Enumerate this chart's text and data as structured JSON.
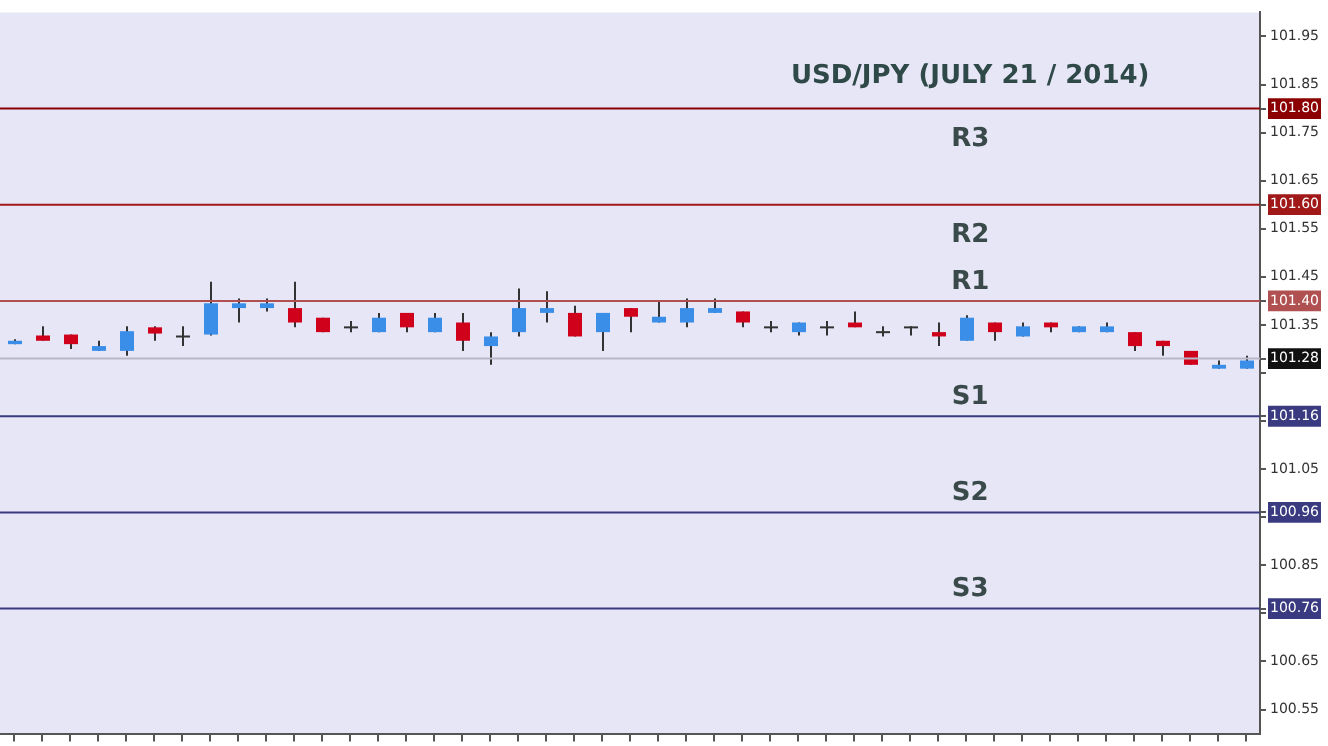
{
  "chart_data": {
    "type": "candlestick",
    "title": "USD/JPY (JULY 21 / 2014)",
    "categories": [
      null,
      null,
      null,
      null,
      null,
      null,
      null,
      null,
      null,
      null,
      null,
      null,
      null,
      null,
      null,
      null,
      null,
      null,
      null,
      null,
      null,
      null,
      null,
      null,
      null,
      null,
      null,
      null,
      null,
      null,
      null,
      null,
      null,
      null,
      null,
      null,
      null,
      null,
      null,
      null,
      null,
      null,
      null,
      null,
      null
    ],
    "ohlc": [
      [
        101.31,
        101.32,
        101.31,
        101.317
      ],
      [
        101.328,
        101.347,
        101.317,
        101.317
      ],
      [
        101.33,
        101.33,
        101.3,
        101.31
      ],
      [
        101.296,
        101.317,
        101.296,
        101.306
      ],
      [
        101.296,
        101.347,
        101.286,
        101.337
      ],
      [
        101.345,
        101.347,
        101.317,
        101.332
      ],
      [
        101.328,
        101.347,
        101.306,
        101.328
      ],
      [
        101.33,
        101.44,
        101.328,
        101.395
      ],
      [
        101.385,
        101.405,
        101.355,
        101.395
      ],
      [
        101.385,
        101.405,
        101.378,
        101.395
      ],
      [
        101.385,
        101.44,
        101.345,
        101.355
      ],
      [
        101.365,
        101.365,
        101.335,
        101.335
      ],
      [
        101.347,
        101.358,
        101.335,
        101.347
      ],
      [
        101.335,
        101.375,
        101.335,
        101.365
      ],
      [
        101.375,
        101.375,
        101.335,
        101.345
      ],
      [
        101.335,
        101.375,
        101.335,
        101.365
      ],
      [
        101.355,
        101.375,
        101.296,
        101.317
      ],
      [
        101.306,
        101.335,
        101.267,
        101.326
      ],
      [
        101.335,
        101.426,
        101.326,
        101.385
      ],
      [
        101.375,
        101.42,
        101.355,
        101.385
      ],
      [
        101.375,
        101.39,
        101.326,
        101.326
      ],
      [
        101.335,
        101.375,
        101.296,
        101.375
      ],
      [
        101.385,
        101.385,
        101.335,
        101.367
      ],
      [
        101.355,
        101.4,
        101.355,
        101.367
      ],
      [
        101.355,
        101.405,
        101.345,
        101.385
      ],
      [
        101.375,
        101.405,
        101.375,
        101.385
      ],
      [
        101.378,
        101.378,
        101.345,
        101.355
      ],
      [
        101.347,
        101.358,
        101.335,
        101.347
      ],
      [
        101.335,
        101.355,
        101.328,
        101.355
      ],
      [
        101.347,
        101.358,
        101.328,
        101.347
      ],
      [
        101.355,
        101.378,
        101.345,
        101.345
      ],
      [
        101.337,
        101.347,
        101.326,
        101.337
      ],
      [
        101.347,
        101.347,
        101.328,
        101.347
      ],
      [
        101.335,
        101.355,
        101.306,
        101.326
      ],
      [
        101.317,
        101.37,
        101.317,
        101.365
      ],
      [
        101.355,
        101.355,
        101.317,
        101.335
      ],
      [
        101.326,
        101.355,
        101.326,
        101.347
      ],
      [
        101.355,
        101.355,
        101.335,
        101.345
      ],
      [
        101.335,
        101.347,
        101.335,
        101.347
      ],
      [
        101.335,
        101.355,
        101.335,
        101.347
      ],
      [
        101.335,
        101.335,
        101.296,
        101.306
      ],
      [
        101.317,
        101.317,
        101.286,
        101.306
      ],
      [
        101.296,
        101.296,
        101.267,
        101.267
      ],
      [
        101.259,
        101.276,
        101.259,
        101.267
      ],
      [
        101.259,
        101.286,
        101.259,
        101.276
      ]
    ],
    "colors": [
      "#3b8ee8",
      "#d0021b",
      "#d0021b",
      "#3b8ee8",
      "#3b8ee8",
      "#d0021b",
      "#333333",
      "#3b8ee8",
      "#3b8ee8",
      "#3b8ee8",
      "#d0021b",
      "#d0021b",
      "#333333",
      "#3b8ee8",
      "#d0021b",
      "#3b8ee8",
      "#d0021b",
      "#3b8ee8",
      "#3b8ee8",
      "#3b8ee8",
      "#d0021b",
      "#3b8ee8",
      "#d0021b",
      "#3b8ee8",
      "#3b8ee8",
      "#3b8ee8",
      "#d0021b",
      "#333333",
      "#3b8ee8",
      "#333333",
      "#d0021b",
      "#333333",
      "#333333",
      "#d0021b",
      "#3b8ee8",
      "#d0021b",
      "#3b8ee8",
      "#d0021b",
      "#3b8ee8",
      "#3b8ee8",
      "#d0021b",
      "#d0021b",
      "#d0021b",
      "#3b8ee8",
      "#3b8ee8"
    ],
    "ylim": [
      100.5,
      102.0
    ],
    "yticks": [
      100.55,
      100.65,
      {
        "value": 100.75,
        "label": null
      },
      {
        "value": 100.76,
        "label": "100.76"
      },
      100.85,
      {
        "value": 100.95,
        "label": null
      },
      {
        "value": 100.96,
        "label": "100.96"
      },
      101.05,
      {
        "value": 101.15,
        "label": null
      },
      {
        "value": 101.16,
        "label": "101.16"
      },
      {
        "value": 101.25,
        "label": null
      },
      {
        "value": 101.28,
        "label": "101.28"
      },
      101.35,
      {
        "value": 101.4,
        "label": "101.40"
      },
      101.45,
      101.55,
      {
        "value": 101.6,
        "label": "101.60"
      },
      101.65,
      101.75,
      {
        "value": 101.8,
        "label": "101.80"
      },
      101.85,
      101.95
    ],
    "tick_labels": "y",
    "grid": false,
    "ref_lines": [
      {
        "axis": "y",
        "value": 101.8,
        "label": "R3",
        "color": "#8b0000"
      },
      {
        "axis": "y",
        "value": 101.6,
        "label": "R2",
        "color": "#a01818"
      },
      {
        "axis": "y",
        "value": 101.4,
        "label": "R1",
        "color": "#b05050"
      },
      {
        "axis": "y",
        "value": 101.28,
        "label": null,
        "color": "#b8b8c8"
      },
      {
        "axis": "y",
        "value": 101.16,
        "label": "S1",
        "color": "#3a3a80"
      },
      {
        "axis": "y",
        "value": 100.96,
        "label": "S2",
        "color": "#3a3a80"
      },
      {
        "axis": "y",
        "value": 100.76,
        "label": "S3",
        "color": "#3a3a80"
      }
    ]
  }
}
